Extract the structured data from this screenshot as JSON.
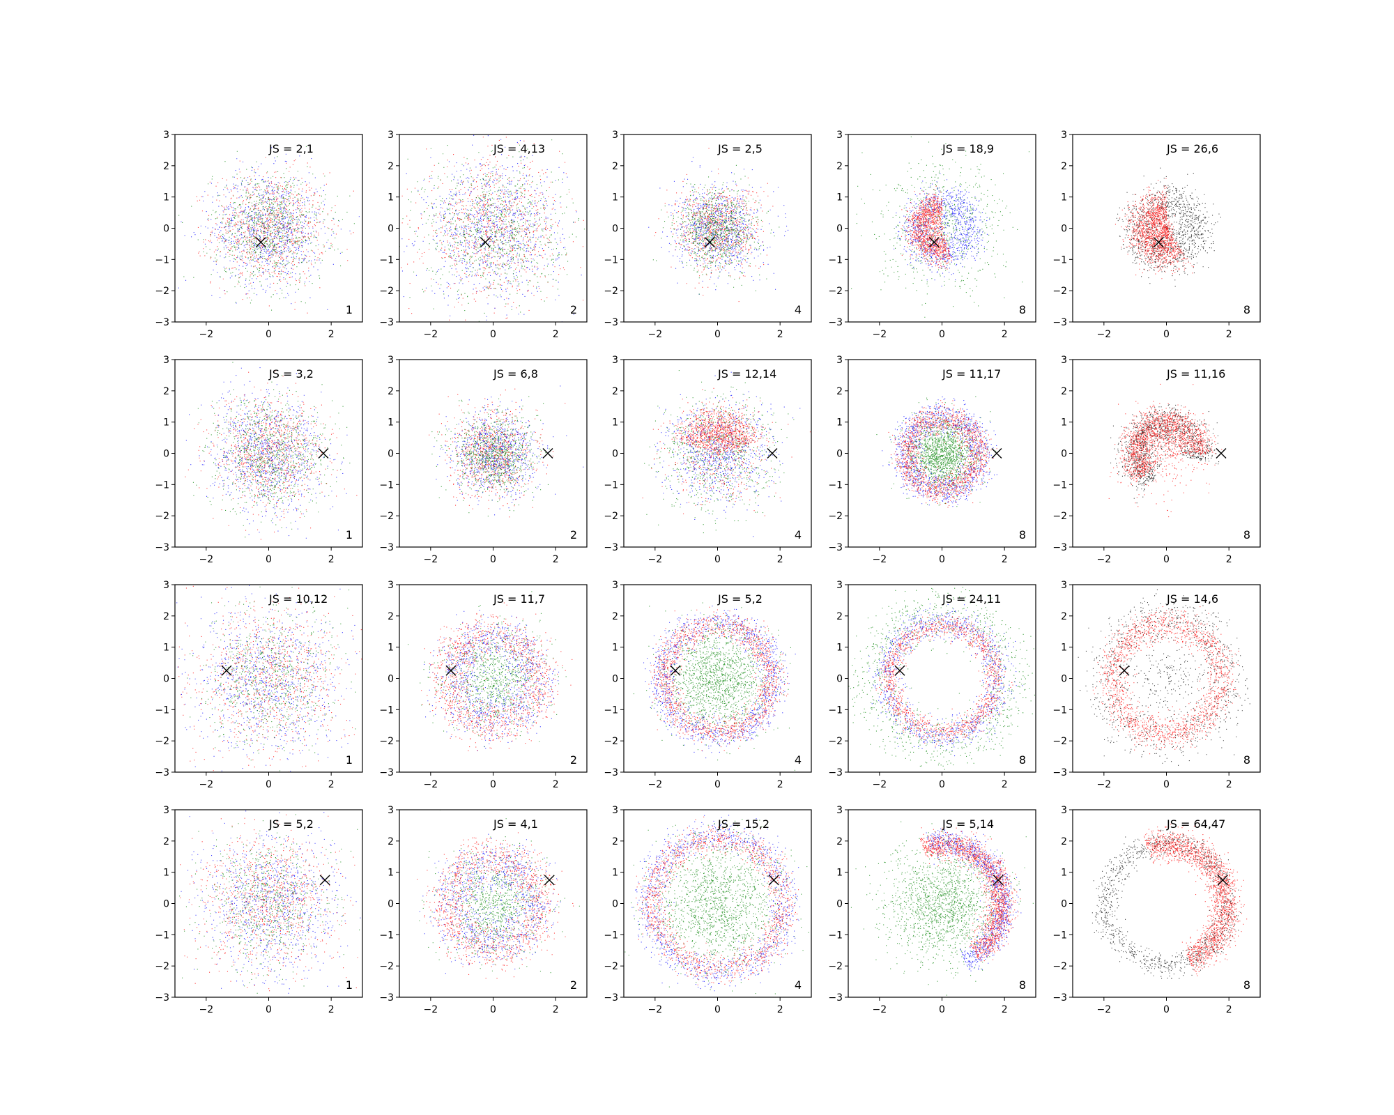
{
  "chart_data": {
    "type": "scatter",
    "layout": {
      "rows": 4,
      "cols": 5
    },
    "xlim": [
      -3,
      3
    ],
    "ylim": [
      -3,
      3
    ],
    "xticks": [
      -2,
      0,
      2
    ],
    "yticks": [
      -3,
      -2,
      -1,
      0,
      1,
      2,
      3
    ],
    "colors": {
      "red": "#ff0000",
      "green": "#008000",
      "blue": "#0000ff",
      "black": "#000000"
    },
    "marker": "x",
    "rows": [
      {
        "marker": [
          -0.25,
          -0.45
        ],
        "panels": [
          {
            "title": "JS = 2,1",
            "k": "1",
            "pattern": "mix3",
            "radius": 0.9
          },
          {
            "title": "JS = 4,13",
            "k": "2",
            "pattern": "mix3",
            "radius": 1.1
          },
          {
            "title": "JS = 2,5",
            "k": "4",
            "pattern": "mix3_small",
            "radius": 0.8
          },
          {
            "title": "JS = 18,9",
            "k": "8",
            "pattern": "rings_red_inner",
            "radius": 1.0
          },
          {
            "title": "JS = 26,6",
            "k": "8",
            "pattern": "red_black_half",
            "radius": 1.0
          }
        ]
      },
      {
        "marker": [
          1.75,
          0.0
        ],
        "panels": [
          {
            "title": "JS = 3,2",
            "k": "1",
            "pattern": "mix3",
            "radius": 0.9
          },
          {
            "title": "JS = 6,8",
            "k": "2",
            "pattern": "mix3_small",
            "radius": 0.8
          },
          {
            "title": "JS = 12,14",
            "k": "4",
            "pattern": "mix3_rb_top",
            "radius": 1.0
          },
          {
            "title": "JS = 11,17",
            "k": "8",
            "pattern": "ring_green_center",
            "radius": 1.2
          },
          {
            "title": "JS = 11,16",
            "k": "8",
            "pattern": "arc_top_red",
            "radius": 1.2
          }
        ]
      },
      {
        "marker": [
          -1.35,
          0.25
        ],
        "panels": [
          {
            "title": "JS = 10,12",
            "k": "1",
            "pattern": "mix3_wide",
            "radius": 1.2
          },
          {
            "title": "JS = 11,7",
            "k": "2",
            "pattern": "ring_blue_green",
            "radius": 1.6
          },
          {
            "title": "JS = 5,2",
            "k": "4",
            "pattern": "ring_green_center",
            "radius": 1.8
          },
          {
            "title": "JS = 24,11",
            "k": "8",
            "pattern": "ring_big_green_outer",
            "radius": 1.8
          },
          {
            "title": "JS = 14,6",
            "k": "8",
            "pattern": "ring_red_black",
            "radius": 1.9
          }
        ]
      },
      {
        "marker": [
          1.8,
          0.75
        ],
        "panels": [
          {
            "title": "JS = 5,2",
            "k": "1",
            "pattern": "mix3_wide",
            "radius": 1.1
          },
          {
            "title": "JS = 4,1",
            "k": "2",
            "pattern": "ring_blue_green",
            "radius": 1.6
          },
          {
            "title": "JS = 15,2",
            "k": "4",
            "pattern": "ring_green_center",
            "radius": 2.2
          },
          {
            "title": "JS = 5,14",
            "k": "8",
            "pattern": "crescent_right",
            "radius": 2.0
          },
          {
            "title": "JS = 64,47",
            "k": "8",
            "pattern": "ring_right_red",
            "radius": 2.0
          }
        ]
      }
    ]
  }
}
